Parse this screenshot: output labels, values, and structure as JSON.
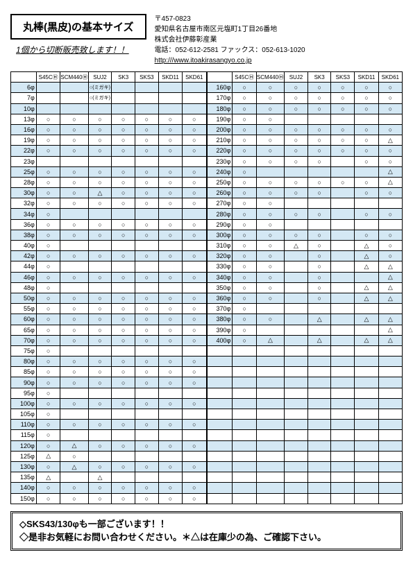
{
  "title": "丸棒(黒皮)の基本サイズ",
  "subtitle": "1個から切断販売致します！！",
  "company": {
    "zip": "〒457-0823",
    "addr": "愛知県名古屋市南区元塩町1丁目26番地",
    "name": "株式会社伊藤彰産業",
    "tel": "電話：052-612-2581 ファックス：052-613-1020",
    "url": "http:///www.itoakirasangyo.co.jp"
  },
  "cols": [
    "S45CⒽ",
    "SCM440Ⓗ",
    "SUJ2",
    "SK3",
    "SKS3",
    "SKD11",
    "SKD61"
  ],
  "migaki": "○(ミガキ)",
  "t1_sizes": [
    "6φ",
    "7φ",
    "10φ",
    "13φ",
    "16φ",
    "19φ",
    "22φ",
    "23φ",
    "25φ",
    "28φ",
    "30φ",
    "32φ",
    "34φ",
    "36φ",
    "38φ",
    "40φ",
    "42φ",
    "44φ",
    "46φ",
    "48φ",
    "50φ",
    "55φ",
    "60φ",
    "65φ",
    "70φ",
    "75φ",
    "80φ",
    "85φ",
    "90φ",
    "95φ",
    "100φ",
    "105φ",
    "110φ",
    "115φ",
    "120φ",
    "125φ",
    "130φ",
    "135φ",
    "140φ",
    "150φ"
  ],
  "t1_data": [
    [
      "",
      "",
      "m",
      "",
      "",
      "",
      ""
    ],
    [
      "",
      "",
      "m",
      "",
      "",
      "",
      ""
    ],
    [
      "",
      "",
      "",
      "",
      "",
      "",
      ""
    ],
    [
      "○",
      "○",
      "○",
      "○",
      "○",
      "○",
      "○"
    ],
    [
      "○",
      "○",
      "○",
      "○",
      "○",
      "○",
      "○"
    ],
    [
      "○",
      "○",
      "○",
      "○",
      "○",
      "○",
      "○"
    ],
    [
      "○",
      "○",
      "○",
      "○",
      "○",
      "○",
      "○"
    ],
    [
      "",
      "",
      "",
      "",
      "",
      "",
      ""
    ],
    [
      "○",
      "○",
      "○",
      "○",
      "○",
      "○",
      "○"
    ],
    [
      "○",
      "○",
      "○",
      "○",
      "○",
      "○",
      "○"
    ],
    [
      "○",
      "○",
      "△",
      "○",
      "○",
      "○",
      "○"
    ],
    [
      "○",
      "○",
      "○",
      "○",
      "○",
      "○",
      "○"
    ],
    [
      "○",
      "",
      "",
      "",
      "",
      "",
      ""
    ],
    [
      "○",
      "○",
      "○",
      "○",
      "○",
      "○",
      "○"
    ],
    [
      "○",
      "○",
      "○",
      "○",
      "○",
      "○",
      "○"
    ],
    [
      "○",
      "",
      "",
      "",
      "",
      "",
      ""
    ],
    [
      "○",
      "○",
      "○",
      "○",
      "○",
      "○",
      "○"
    ],
    [
      "○",
      "",
      "",
      "",
      "",
      "",
      ""
    ],
    [
      "○",
      "○",
      "○",
      "○",
      "○",
      "○",
      "○"
    ],
    [
      "○",
      "",
      "",
      "",
      "",
      "",
      ""
    ],
    [
      "○",
      "○",
      "○",
      "○",
      "○",
      "○",
      "○"
    ],
    [
      "○",
      "○",
      "○",
      "○",
      "○",
      "○",
      "○"
    ],
    [
      "○",
      "○",
      "○",
      "○",
      "○",
      "○",
      "○"
    ],
    [
      "○",
      "○",
      "○",
      "○",
      "○",
      "○",
      "○"
    ],
    [
      "○",
      "○",
      "○",
      "○",
      "○",
      "○",
      "○"
    ],
    [
      "○",
      "",
      "",
      "",
      "",
      "",
      ""
    ],
    [
      "○",
      "○",
      "○",
      "○",
      "○",
      "○",
      "○"
    ],
    [
      "○",
      "○",
      "○",
      "○",
      "○",
      "○",
      "○"
    ],
    [
      "○",
      "○",
      "○",
      "○",
      "○",
      "○",
      "○"
    ],
    [
      "○",
      "",
      "",
      "",
      "",
      "",
      ""
    ],
    [
      "○",
      "○",
      "○",
      "○",
      "○",
      "○",
      "○"
    ],
    [
      "○",
      "",
      "",
      "",
      "",
      "",
      ""
    ],
    [
      "○",
      "○",
      "○",
      "○",
      "○",
      "○",
      "○"
    ],
    [
      "○",
      "",
      "",
      "",
      "",
      "",
      ""
    ],
    [
      "○",
      "△",
      "○",
      "○",
      "○",
      "○",
      "○"
    ],
    [
      "△",
      "○",
      "",
      "",
      "",
      "",
      ""
    ],
    [
      "○",
      "△",
      "○",
      "○",
      "○",
      "○",
      "○"
    ],
    [
      "△",
      "",
      "△",
      "",
      "",
      "",
      ""
    ],
    [
      "○",
      "○",
      "○",
      "○",
      "○",
      "○",
      "○"
    ],
    [
      "○",
      "○",
      "○",
      "○",
      "○",
      "○",
      "○"
    ]
  ],
  "t2_sizes": [
    "160φ",
    "170φ",
    "180φ",
    "190φ",
    "200φ",
    "210φ",
    "220φ",
    "230φ",
    "240φ",
    "250φ",
    "260φ",
    "270φ",
    "280φ",
    "290φ",
    "300φ",
    "310φ",
    "320φ",
    "330φ",
    "340φ",
    "350φ",
    "360φ",
    "370φ",
    "380φ",
    "390φ",
    "400φ"
  ],
  "t2_data": [
    [
      "○",
      "○",
      "○",
      "○",
      "○",
      "○",
      "○"
    ],
    [
      "○",
      "○",
      "○",
      "○",
      "○",
      "○",
      "○"
    ],
    [
      "○",
      "○",
      "○",
      "○",
      "○",
      "○",
      "○"
    ],
    [
      "○",
      "○",
      "",
      "",
      "",
      "",
      ""
    ],
    [
      "○",
      "○",
      "○",
      "○",
      "○",
      "○",
      "○"
    ],
    [
      "○",
      "○",
      "○",
      "○",
      "○",
      "○",
      "△"
    ],
    [
      "○",
      "○",
      "○",
      "○",
      "○",
      "○",
      "○"
    ],
    [
      "○",
      "○",
      "○",
      "○",
      "",
      "○",
      "○"
    ],
    [
      "○",
      "",
      "",
      "",
      "",
      "",
      "△"
    ],
    [
      "○",
      "○",
      "○",
      "○",
      "○",
      "○",
      "△"
    ],
    [
      "○",
      "○",
      "○",
      "○",
      "",
      "○",
      "○"
    ],
    [
      "○",
      "○",
      "",
      "",
      "",
      "",
      ""
    ],
    [
      "○",
      "○",
      "○",
      "○",
      "",
      "○",
      "○"
    ],
    [
      "○",
      "○",
      "",
      "",
      "",
      "",
      ""
    ],
    [
      "○",
      "○",
      "○",
      "○",
      "",
      "○",
      "○"
    ],
    [
      "○",
      "○",
      "△",
      "○",
      "",
      "△",
      "○"
    ],
    [
      "○",
      "○",
      "",
      "○",
      "",
      "△",
      "○"
    ],
    [
      "○",
      "○",
      "",
      "○",
      "",
      "△",
      "△"
    ],
    [
      "○",
      "○",
      "",
      "○",
      "",
      "",
      "△"
    ],
    [
      "○",
      "○",
      "",
      "○",
      "",
      "△",
      "△"
    ],
    [
      "○",
      "○",
      "",
      "○",
      "",
      "△",
      "△"
    ],
    [
      "○",
      "",
      "",
      "",
      "",
      "",
      ""
    ],
    [
      "○",
      "○",
      "",
      "△",
      "",
      "△",
      "△"
    ],
    [
      "○",
      "",
      "",
      "",
      "",
      "",
      "△"
    ],
    [
      "○",
      "△",
      "",
      "△",
      "",
      "△",
      "△"
    ]
  ],
  "t2_pad_rows": 15,
  "footer": {
    "line1": "◇SKS43/130φも一部ございます！！",
    "line2": "◇是非お気軽にお問い合わせください。＊△は在庫少の為、ご確認下さい。"
  }
}
